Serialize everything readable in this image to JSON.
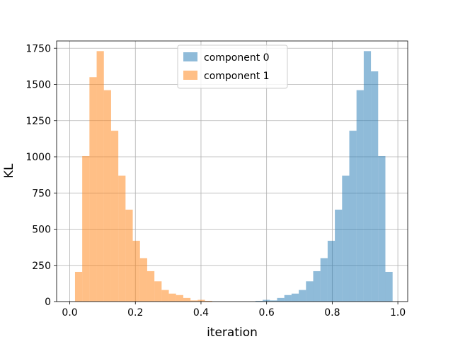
{
  "chart_data": {
    "type": "bar",
    "title": "",
    "xlabel": "iteration",
    "ylabel": "KL",
    "xlim": [
      -0.04,
      1.03
    ],
    "ylim": [
      0,
      1800
    ],
    "xticks": [
      0.0,
      0.2,
      0.4,
      0.6,
      0.8,
      1.0
    ],
    "xtick_labels": [
      "0.0",
      "0.2",
      "0.4",
      "0.6",
      "0.8",
      "1.0"
    ],
    "yticks": [
      0,
      250,
      500,
      750,
      1000,
      1250,
      1500,
      1750
    ],
    "ytick_labels": [
      "0",
      "250",
      "500",
      "750",
      "1000",
      "1250",
      "1500",
      "1750"
    ],
    "grid": true,
    "legend_position": "upper-center",
    "series": [
      {
        "name": "component 0",
        "color": "#1f77b4",
        "opacity": 0.5,
        "bin_edges": [
          0.566,
          0.588,
          0.61,
          0.632,
          0.654,
          0.676,
          0.698,
          0.72,
          0.742,
          0.764,
          0.786,
          0.808,
          0.83,
          0.852,
          0.874,
          0.896,
          0.918,
          0.94,
          0.962,
          0.984
        ],
        "counts": [
          5,
          12,
          8,
          25,
          45,
          55,
          80,
          140,
          210,
          300,
          420,
          635,
          870,
          1180,
          1460,
          1730,
          1590,
          1005,
          205
        ]
      },
      {
        "name": "component 1",
        "color": "#ff7f0e",
        "opacity": 0.5,
        "bin_edges": [
          0.016,
          0.038,
          0.06,
          0.082,
          0.104,
          0.126,
          0.148,
          0.17,
          0.192,
          0.214,
          0.236,
          0.258,
          0.28,
          0.302,
          0.324,
          0.346,
          0.368,
          0.39,
          0.412,
          0.434
        ],
        "counts": [
          205,
          1005,
          1550,
          1730,
          1460,
          1180,
          870,
          635,
          420,
          300,
          210,
          140,
          80,
          55,
          45,
          25,
          8,
          12,
          5
        ]
      }
    ]
  }
}
